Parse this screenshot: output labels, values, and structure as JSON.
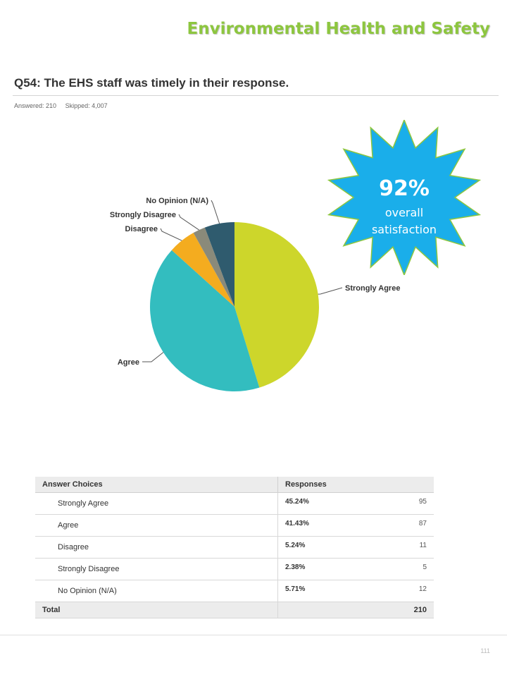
{
  "header": {
    "title": "Environmental Health and Safety"
  },
  "question": {
    "title": "Q54: The EHS staff was timely in their response.",
    "answered": "Answered: 210",
    "skipped": "Skipped: 4,007"
  },
  "badge": {
    "value": "92%",
    "line1": "overall",
    "line2": "satisfaction",
    "color": "#1aaeea"
  },
  "chart_data": {
    "type": "pie",
    "categories": [
      "Strongly Agree",
      "Agree",
      "Disagree",
      "Strongly Disagree",
      "No Opinion (N/A)"
    ],
    "values": [
      45.24,
      41.43,
      5.24,
      2.38,
      5.71
    ],
    "colors": [
      "#cdd62b",
      "#33bdbf",
      "#f4ac1f",
      "#8a8a7a",
      "#2f5b6e"
    ],
    "legend": "none"
  },
  "table": {
    "headers": [
      "Answer Choices",
      "Responses"
    ],
    "rows": [
      {
        "choice": "Strongly Agree",
        "pct": "45.24%",
        "count": "95"
      },
      {
        "choice": "Agree",
        "pct": "41.43%",
        "count": "87"
      },
      {
        "choice": "Disagree",
        "pct": "5.24%",
        "count": "11"
      },
      {
        "choice": "Strongly Disagree",
        "pct": "2.38%",
        "count": "5"
      },
      {
        "choice": "No Opinion (N/A)",
        "pct": "5.71%",
        "count": "12"
      }
    ],
    "total_label": "Total",
    "total_value": "210"
  },
  "page_number": "111"
}
